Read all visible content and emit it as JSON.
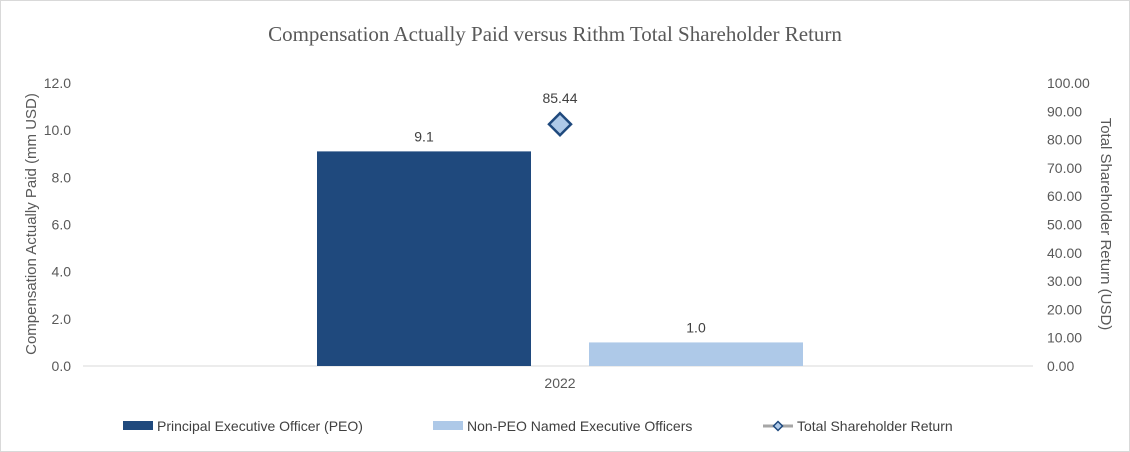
{
  "chart_data": {
    "type": "bar",
    "title": "Compensation Actually Paid versus Rithm Total Shareholder Return",
    "categories": [
      "2022"
    ],
    "series": [
      {
        "name": "Principal Executive Officer (PEO)",
        "kind": "bar",
        "axis": "left",
        "color": "#1f497d",
        "values": [
          9.1
        ],
        "labels": [
          "9.1"
        ]
      },
      {
        "name": "Non-PEO Named Executive Officers",
        "kind": "bar",
        "axis": "left",
        "color": "#aec9e8",
        "values": [
          1.0
        ],
        "labels": [
          "1.0"
        ]
      },
      {
        "name": "Total Shareholder Return",
        "kind": "line-marker",
        "axis": "right",
        "color": "#a6a6a6",
        "marker_fill": "#aec9e8",
        "marker_stroke": "#1f497d",
        "values": [
          85.44
        ],
        "labels": [
          "85.44"
        ]
      }
    ],
    "y_left": {
      "label": "Compensation Actually Paid (mm USD)",
      "ylim": [
        0,
        12
      ],
      "ticks": [
        "0.0",
        "2.0",
        "4.0",
        "6.0",
        "8.0",
        "10.0",
        "12.0"
      ]
    },
    "y_right": {
      "label": "Total Shareholder Return (USD)",
      "ylim": [
        0,
        100
      ],
      "ticks": [
        "0.00",
        "10.00",
        "20.00",
        "30.00",
        "40.00",
        "50.00",
        "60.00",
        "70.00",
        "80.00",
        "90.00",
        "100.00"
      ]
    },
    "grid": false,
    "legend_position": "bottom"
  }
}
